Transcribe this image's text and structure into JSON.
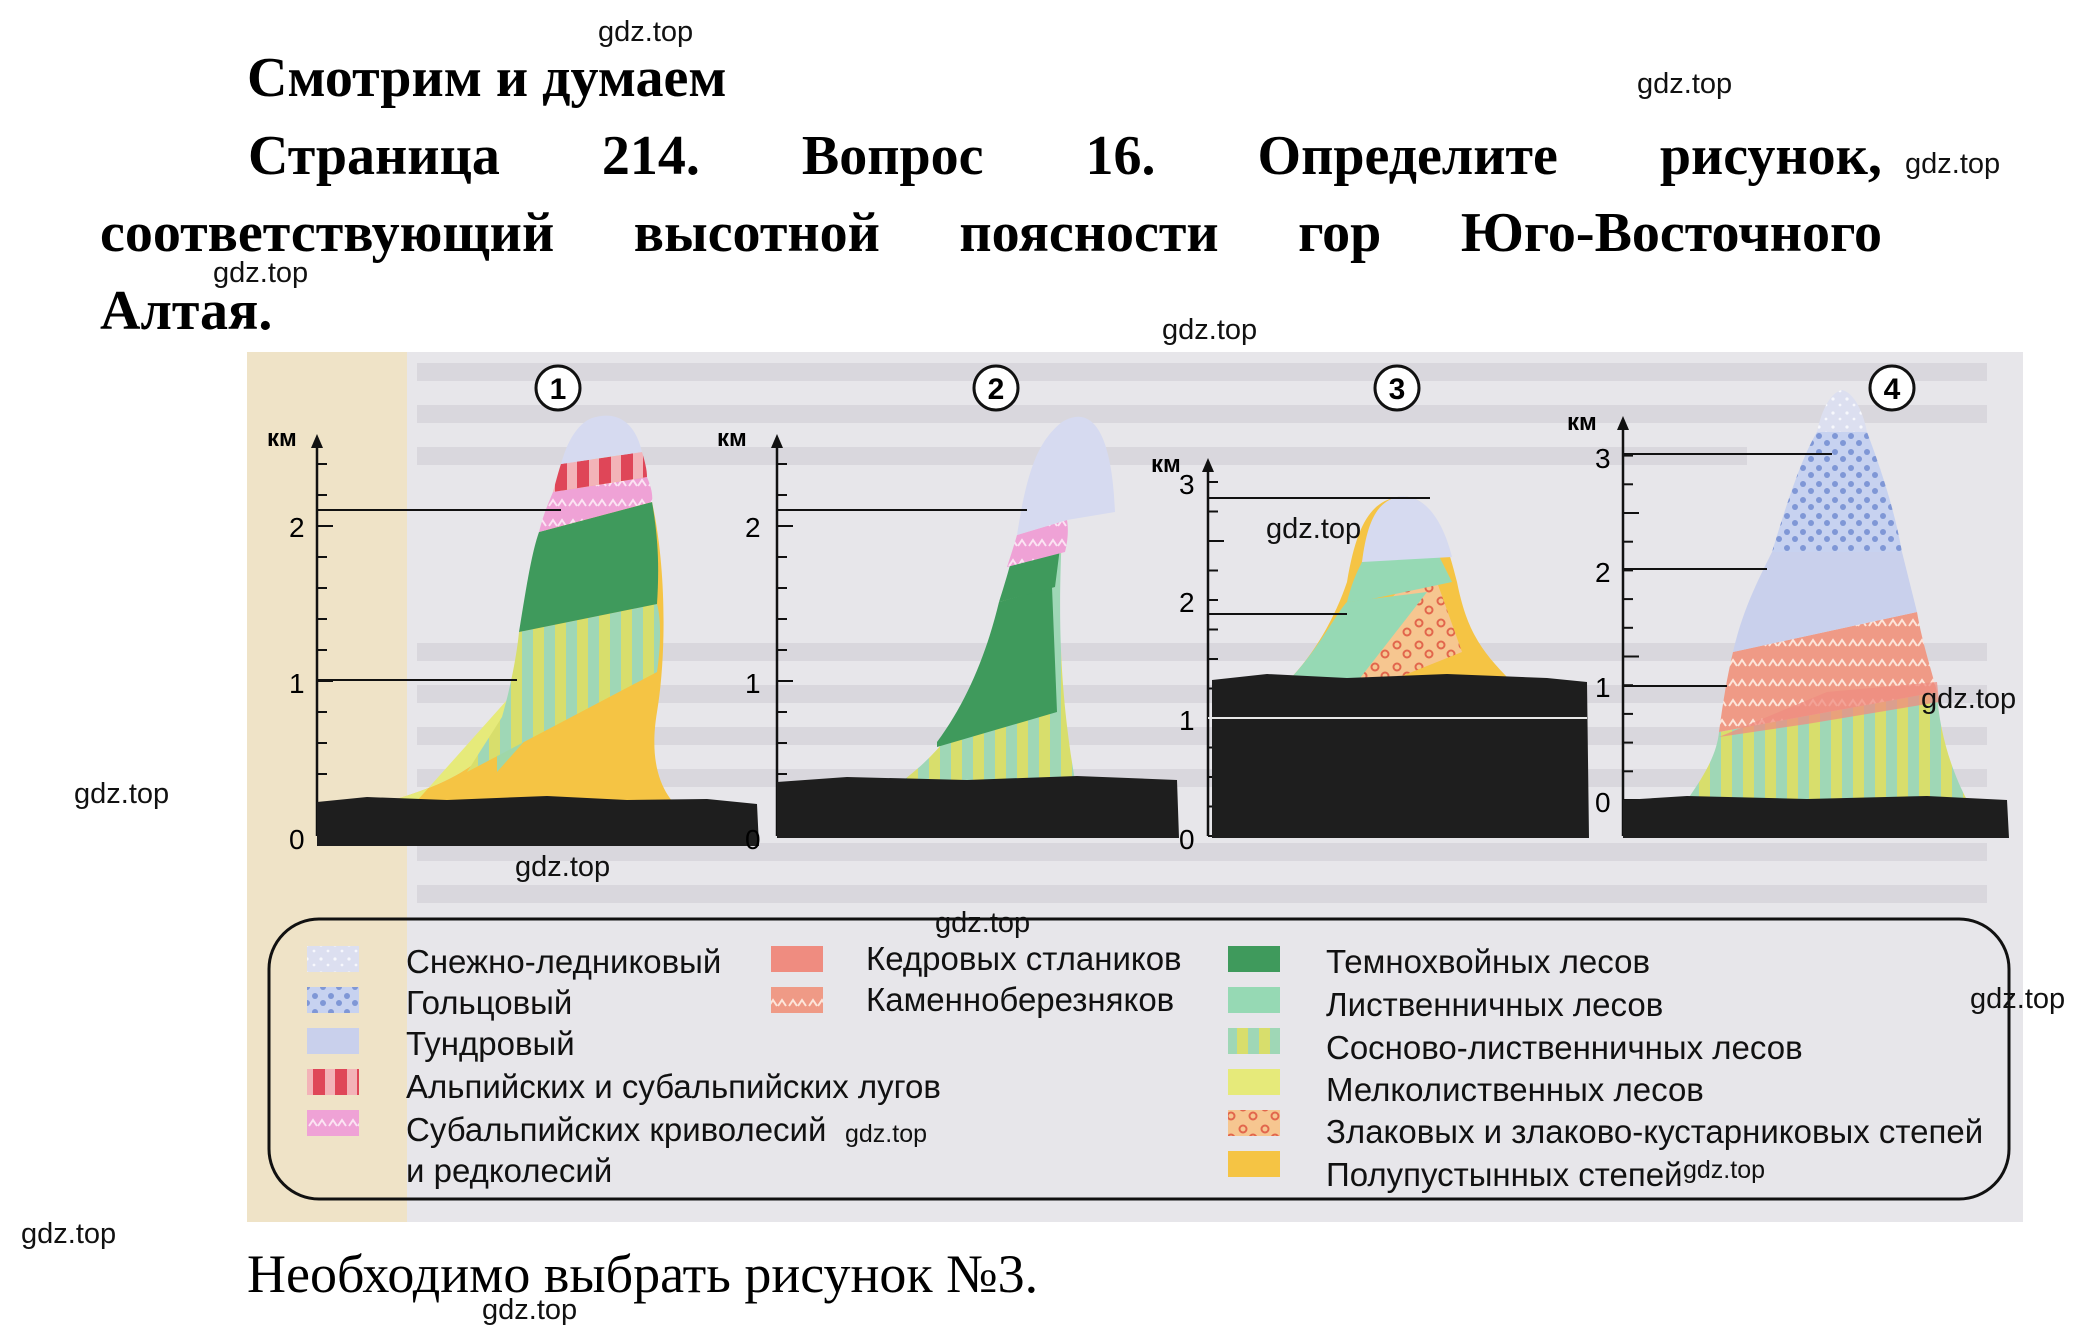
{
  "heading": {
    "title": "Смотрим и думаем",
    "question_line1": [
      "Страница",
      "214.",
      "Вопрос",
      "16.",
      "Определите",
      "рисунок,"
    ],
    "question_line2": [
      "соответствующий",
      "высотной",
      "поясности",
      "гор",
      "Юго-Восточного"
    ],
    "question_line3": "Алтая."
  },
  "figure": {
    "panel_numbers": [
      "1",
      "2",
      "3",
      "4"
    ],
    "axis_unit": "км",
    "panels": [
      {
        "ticks": [
          "0",
          "1",
          "2"
        ]
      },
      {
        "ticks": [
          "0",
          "1",
          "2"
        ]
      },
      {
        "ticks": [
          "0",
          "1",
          "2",
          "3"
        ]
      },
      {
        "ticks": [
          "0",
          "1",
          "2",
          "3"
        ]
      }
    ],
    "legend": {
      "col1": [
        "Снежно-ледниковый",
        "Гольцовый",
        "Тундровый",
        "Альпийских и субальпийских лугов",
        "Субальпийских криволесий",
        "и редколесий"
      ],
      "col2": [
        "Кедровых стлаников",
        "Каменноберезняков"
      ],
      "col3": [
        "Темнохвойных лесов",
        "Лиственничных лесов",
        "Сосново-лиственничных лесов",
        "Мелколиственных лесов",
        "Злаковых и злаково-кустарниковых степей",
        "Полупустынных степей"
      ]
    },
    "zone_colors": {
      "snow_glacier": "#dcdff0",
      "goltsy": "#8fa6dc",
      "tundra": "#c9d0ec",
      "alpine_meadows": "#e0505e",
      "subalpine_woodland": "#f0a8d8",
      "cedar_elfin": "#ef8c80",
      "stone_birch": "#f3a88c",
      "dark_conifer": "#3f9a5c",
      "larch": "#96d9b4",
      "pine_larch": "#c9d96a",
      "small_leaf": "#e6ea7a",
      "steppe": "#f3b77c",
      "semi_desert_steppe": "#f5c444",
      "ground": "#1e1e1e"
    }
  },
  "answer": "Необходимо выбрать рисунок №3.",
  "watermark": "gdz.top"
}
